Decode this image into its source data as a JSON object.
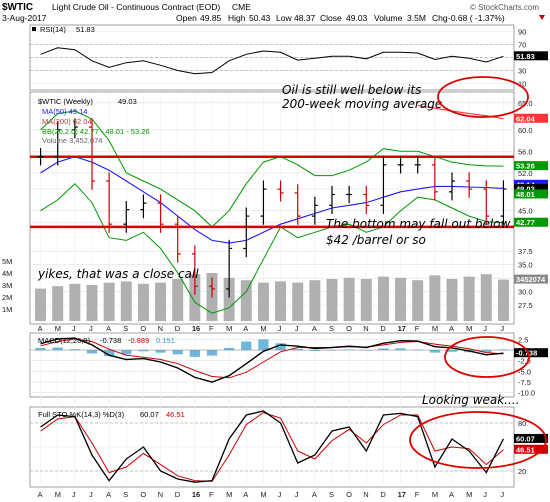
{
  "header": {
    "symbol": "$WTIC",
    "title": "Light Crude Oil - Continuous Contract (EOD)",
    "exchange": "CME",
    "watermark": "© StockCharts.com",
    "date": "3-Aug-2017",
    "open_label": "Open",
    "open": "49.85",
    "high_label": "High",
    "high": "50.43",
    "low_label": "Low",
    "low": "48.37",
    "close_label": "Close",
    "close": "49.03",
    "volume_label": "Volume",
    "volume": "3.5M",
    "chg_label": "Chg",
    "chg": "-0.68 ( -1.37%)"
  },
  "colors": {
    "price_up": "#000000",
    "price_down": "#cc0000",
    "ma50": "#1a1aff",
    "ma200": "#ff3333",
    "bb": "#009900",
    "volume": "#b0b0b0",
    "resistance": "#dd0000",
    "annotation": "#dd0000",
    "macd": "#000000",
    "macd_signal": "#cc0000",
    "macd_hist": "#3399cc",
    "sto_k": "#000000",
    "sto_d": "#cc0000"
  },
  "x_labels": [
    "A",
    "M",
    "J",
    "J",
    "A",
    "S",
    "O",
    "N",
    "D",
    "16",
    "F",
    "M",
    "A",
    "M",
    "J",
    "J",
    "A",
    "S",
    "O",
    "N",
    "D",
    "17",
    "F",
    "M",
    "A",
    "M",
    "J",
    "J"
  ],
  "rsi": {
    "legend_symbol": "RSI(14)",
    "legend_value": "51.83",
    "last_badge": "51.83",
    "y_ticks": [
      "90",
      "70",
      "50",
      "30",
      "10"
    ],
    "y_values": [
      90,
      70,
      50,
      30,
      10
    ]
  },
  "price": {
    "legend_symbol": "$WTIC (Weekly)",
    "legend_value": "49.03",
    "ma50_label": "MA(50) 49.14",
    "ma200_label": "MA(200) 62.04",
    "bb_label": "BB(20,2.0) 42.77 - 48.01 - 53.26",
    "volume_label": "Volume 3,452,074",
    "y_ticks": [
      "65.0",
      "60.0",
      "56.0",
      "52.0",
      "49.03",
      "45.0",
      "42.77",
      "37.5",
      "35.0",
      "32.5",
      "30.0",
      "27.5"
    ],
    "y_values": [
      65,
      60,
      56,
      52,
      49.03,
      45,
      42.77,
      37.5,
      35,
      32.5,
      30,
      27.5
    ],
    "badges": {
      "ma200": "62.04",
      "bb_upper": "53.26",
      "close": "49.03",
      "ma50": "49.14",
      "bb_mid": "48.01",
      "bb_lower": "42.77",
      "volume": "3452074"
    },
    "volume_ticks": [
      "5M",
      "4M",
      "3M",
      "2M",
      "1M"
    ],
    "volume_tick_values": [
      5,
      4,
      3,
      2,
      1
    ],
    "resistance_level": 55.0,
    "support_level": 42.0
  },
  "macd": {
    "legend_symbol": "MACD(12,26,9)",
    "legend_macd": "-0.738",
    "legend_signal": "-0.889",
    "legend_hist": "0.151",
    "y_ticks": [
      "2.5",
      "0.0",
      "-2.5",
      "-5.0",
      "-7.5",
      "-10.0"
    ],
    "y_values": [
      2.5,
      0,
      -2.5,
      -5,
      -7.5,
      -10
    ],
    "last_badge": "-0.738"
  },
  "sto": {
    "legend_symbol": "Full STO %K(14,3) %D(3)",
    "legend_k": "60.07",
    "legend_d": "46.51",
    "y_ticks": [
      "80",
      "50",
      "20"
    ],
    "y_values": [
      80,
      50,
      20
    ],
    "badges": {
      "k": "60.07",
      "d": "46.51"
    }
  },
  "annotations": {
    "ma_note_line1": "Oil is still well below its",
    "ma_note_line2": "200-week moving average",
    "bottom_note_line1": "The bottom may fall out below",
    "bottom_note_line2": "$42 /barrel or so",
    "yikes_note": "yikes, that was a close call",
    "weak_note": "Looking weak...."
  },
  "chart_data": {
    "type": "line",
    "title": "Light Crude Oil - Continuous Contract (EOD)",
    "x": [
      "A",
      "M",
      "J",
      "J",
      "A",
      "S",
      "O",
      "N",
      "D",
      "16",
      "F",
      "M",
      "A",
      "M",
      "J",
      "J",
      "A",
      "S",
      "O",
      "N",
      "D",
      "17",
      "F",
      "M",
      "A",
      "M",
      "J",
      "J"
    ],
    "series": [
      {
        "name": "$WTIC (Weekly)",
        "values": [
          55.0,
          60.0,
          60.5,
          50.5,
          42.5,
          45.2,
          46.4,
          42.5,
          37.0,
          31.0,
          30.5,
          38.0,
          44.0,
          49.0,
          48.3,
          44.0,
          46.0,
          48.0,
          48.0,
          46.0,
          53.5,
          53.5,
          53.5,
          48.5,
          50.5,
          49.0,
          44.0,
          49.03
        ]
      },
      {
        "name": "MA(50)",
        "values": [
          52,
          54,
          55,
          54,
          52.5,
          50.5,
          48.5,
          46.5,
          44.0,
          41.5,
          39.5,
          39.0,
          39.5,
          41.0,
          42.5,
          43.5,
          44.5,
          45.5,
          46.0,
          46.5,
          47.5,
          48.5,
          49.0,
          49.5,
          49.5,
          49.4,
          49.3,
          49.14
        ]
      },
      {
        "name": "MA(200)",
        "values": [
          null,
          null,
          null,
          null,
          null,
          null,
          null,
          null,
          null,
          null,
          null,
          null,
          null,
          null,
          null,
          null,
          null,
          null,
          null,
          null,
          null,
          null,
          64.5,
          64.0,
          63.5,
          63.0,
          62.6,
          62.04
        ]
      },
      {
        "name": "BB Upper",
        "values": [
          60,
          63,
          63.5,
          62,
          58,
          52,
          50.5,
          49,
          47,
          45,
          42,
          45,
          50,
          54,
          55,
          53.5,
          51.5,
          51.5,
          52.5,
          54,
          56.5,
          56,
          56,
          55,
          54,
          53.5,
          53.3,
          53.26
        ]
      },
      {
        "name": "BB Lower",
        "values": [
          45,
          47,
          50,
          46.5,
          40,
          39.5,
          41,
          38,
          33.5,
          28,
          26,
          27,
          30,
          36,
          42,
          40,
          41,
          42,
          42.5,
          41,
          42,
          45,
          47.5,
          47,
          45.5,
          44,
          43,
          42.77
        ]
      }
    ],
    "rsi": [
      55,
      65,
      62,
      45,
      35,
      42,
      45,
      38,
      30,
      25,
      27,
      45,
      55,
      60,
      58,
      46,
      49,
      52,
      52,
      48,
      58,
      58,
      57,
      47,
      52,
      49,
      43,
      51.83
    ],
    "macd": [
      1.5,
      2.6,
      2.8,
      1.2,
      -1.2,
      -2.2,
      -2.0,
      -2.8,
      -4.2,
      -6.4,
      -7.5,
      -6.0,
      -3.2,
      -0.3,
      1.2,
      0.9,
      0.4,
      0.6,
      0.9,
      0.6,
      1.6,
      2.2,
      2.1,
      0.8,
      0.5,
      -0.2,
      -1.1,
      -0.738
    ],
    "macd_signal": [
      1.0,
      2.0,
      2.6,
      2.0,
      0.2,
      -1.2,
      -1.7,
      -2.2,
      -3.2,
      -4.8,
      -6.2,
      -6.5,
      -5.2,
      -2.8,
      -0.4,
      0.6,
      0.6,
      0.6,
      0.8,
      0.7,
      1.2,
      1.8,
      2.0,
      1.4,
      0.9,
      0.3,
      -0.6,
      -0.889
    ],
    "sto_k": [
      75,
      90,
      88,
      40,
      8,
      35,
      50,
      20,
      10,
      6,
      8,
      60,
      90,
      95,
      80,
      30,
      40,
      70,
      75,
      45,
      90,
      92,
      88,
      25,
      60,
      45,
      18,
      60.07
    ],
    "sto_d": [
      70,
      85,
      88,
      55,
      18,
      25,
      42,
      28,
      14,
      8,
      7,
      40,
      78,
      93,
      86,
      45,
      35,
      58,
      72,
      55,
      78,
      90,
      90,
      45,
      50,
      48,
      28,
      46.51
    ],
    "volume_millions": [
      2.7,
      2.9,
      3.1,
      3.0,
      3.2,
      3.3,
      3.1,
      3.2,
      3.5,
      3.9,
      4.0,
      3.6,
      3.4,
      3.2,
      3.3,
      3.2,
      3.4,
      3.5,
      3.6,
      3.5,
      3.7,
      3.6,
      3.4,
      3.8,
      3.5,
      3.7,
      3.9,
      3.45
    ],
    "rsi_ylim": [
      0,
      100
    ],
    "price_ylim": [
      24,
      67
    ],
    "macd_ylim": [
      -11,
      4
    ],
    "sto_ylim": [
      0,
      100
    ],
    "grid": true
  }
}
